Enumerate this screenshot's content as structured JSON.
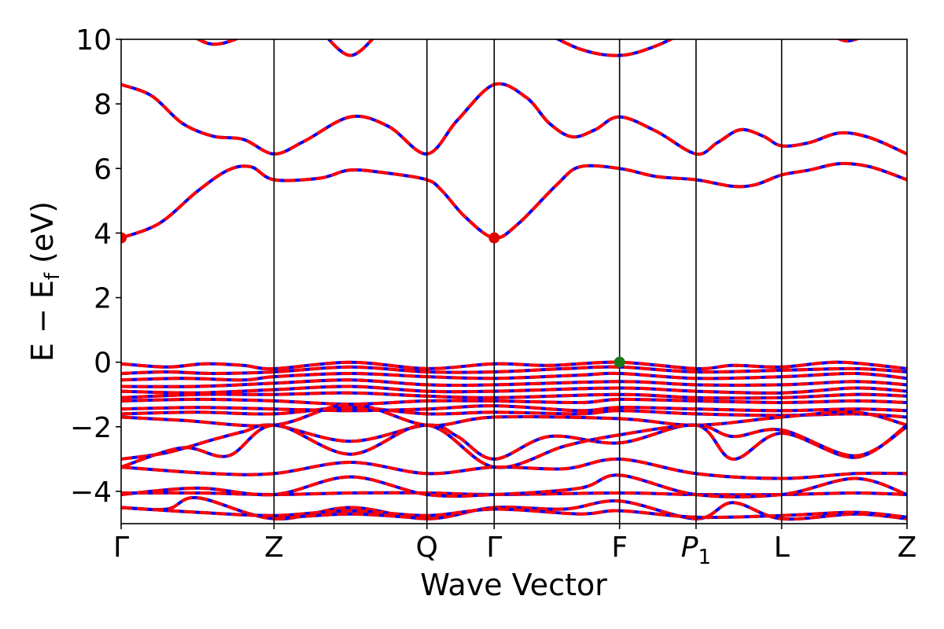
{
  "chart_data": {
    "type": "line",
    "xlabel": "Wave Vector",
    "ylabel": {
      "main": "E − E",
      "sub": "f",
      "unit": " (eV)"
    },
    "ylim": [
      -5,
      10
    ],
    "yticks": [
      -4,
      -2,
      0,
      2,
      4,
      6,
      8,
      10
    ],
    "ytick_labels": [
      "−4",
      "−2",
      "0",
      "2",
      "4",
      "6",
      "8",
      "10"
    ],
    "kpath_positions": [
      0,
      1,
      2,
      2.44,
      3.26,
      3.76,
      4.32,
      5.14
    ],
    "kpath_labels": [
      {
        "text": "Γ",
        "pos": 0
      },
      {
        "text": "Z",
        "pos": 1
      },
      {
        "text": "Q",
        "pos": 2
      },
      {
        "text": "Γ",
        "pos": 2.44
      },
      {
        "text": "F",
        "pos": 3.26
      },
      {
        "text": "P",
        "sub": "1",
        "pos": 3.76
      },
      {
        "text": "L",
        "pos": 4.32
      },
      {
        "text": "Z",
        "pos": 5.14
      }
    ],
    "grid": false,
    "colors": {
      "up": "#ff0000",
      "down": "#0000ff",
      "cbm": "#e00000",
      "vbm": "#1a7a1a"
    },
    "markers": [
      {
        "name": "CBM",
        "x": 0,
        "y": 3.85,
        "color": "#e00000"
      },
      {
        "name": "CBM",
        "x": 2.44,
        "y": 3.85,
        "color": "#e00000"
      },
      {
        "name": "VBM",
        "x": 3.26,
        "y": 0.0,
        "color": "#1a7a1a"
      }
    ],
    "bands": [
      [
        [
          0,
          3.85
        ],
        [
          0.25,
          4.3
        ],
        [
          0.5,
          5.3
        ],
        [
          0.7,
          5.95
        ],
        [
          0.85,
          6.05
        ],
        [
          1,
          5.65
        ],
        [
          1.3,
          5.7
        ],
        [
          1.5,
          5.95
        ],
        [
          1.75,
          5.85
        ],
        [
          2,
          5.65
        ],
        [
          2.1,
          5.3
        ],
        [
          2.25,
          4.5
        ],
        [
          2.44,
          3.85
        ],
        [
          2.6,
          4.3
        ],
        [
          2.85,
          5.5
        ],
        [
          3.0,
          6.05
        ],
        [
          3.26,
          6.0
        ],
        [
          3.5,
          5.75
        ],
        [
          3.76,
          5.65
        ],
        [
          4.0,
          5.45
        ],
        [
          4.15,
          5.5
        ],
        [
          4.32,
          5.8
        ],
        [
          4.5,
          5.95
        ],
        [
          4.7,
          6.15
        ],
        [
          4.9,
          6.05
        ],
        [
          5.14,
          5.65
        ]
      ],
      [
        [
          0,
          8.6
        ],
        [
          0.2,
          8.25
        ],
        [
          0.4,
          7.4
        ],
        [
          0.6,
          7.0
        ],
        [
          0.8,
          6.9
        ],
        [
          1,
          6.45
        ],
        [
          1.2,
          6.85
        ],
        [
          1.5,
          7.6
        ],
        [
          1.75,
          7.3
        ],
        [
          2,
          6.45
        ],
        [
          2.2,
          7.5
        ],
        [
          2.44,
          8.6
        ],
        [
          2.65,
          8.2
        ],
        [
          2.8,
          7.4
        ],
        [
          2.95,
          6.98
        ],
        [
          3.1,
          7.2
        ],
        [
          3.26,
          7.6
        ],
        [
          3.5,
          7.15
        ],
        [
          3.76,
          6.45
        ],
        [
          3.9,
          6.8
        ],
        [
          4.05,
          7.2
        ],
        [
          4.2,
          7.0
        ],
        [
          4.32,
          6.7
        ],
        [
          4.5,
          6.8
        ],
        [
          4.7,
          7.1
        ],
        [
          4.9,
          6.95
        ],
        [
          5.14,
          6.45
        ]
      ],
      [
        [
          0,
          10.6
        ],
        [
          0.4,
          10.2
        ],
        [
          0.6,
          9.85
        ],
        [
          0.8,
          10.1
        ],
        [
          1,
          10.6
        ]
      ],
      [
        [
          1.3,
          10.3
        ],
        [
          1.5,
          9.5
        ],
        [
          1.7,
          10.3
        ]
      ],
      [
        [
          2.7,
          10.4
        ],
        [
          3.0,
          9.7
        ],
        [
          3.26,
          9.5
        ],
        [
          3.5,
          9.8
        ],
        [
          3.76,
          10.4
        ]
      ],
      [
        [
          4.6,
          10.3
        ],
        [
          4.75,
          9.95
        ],
        [
          4.95,
          10.3
        ]
      ],
      [
        [
          0,
          -0.05
        ],
        [
          0.3,
          -0.15
        ],
        [
          0.55,
          -0.05
        ],
        [
          0.8,
          -0.1
        ],
        [
          1,
          -0.2
        ],
        [
          1.5,
          0.0
        ],
        [
          2,
          -0.2
        ],
        [
          2.44,
          -0.05
        ],
        [
          2.8,
          -0.1
        ],
        [
          3.26,
          0.0
        ],
        [
          3.76,
          -0.2
        ],
        [
          4.0,
          -0.1
        ],
        [
          4.32,
          -0.15
        ],
        [
          4.7,
          0.0
        ],
        [
          5.14,
          -0.2
        ]
      ],
      [
        [
          0,
          -0.35
        ],
        [
          0.3,
          -0.3
        ],
        [
          0.6,
          -0.35
        ],
        [
          1,
          -0.3
        ],
        [
          1.5,
          -0.15
        ],
        [
          2,
          -0.3
        ],
        [
          2.44,
          -0.3
        ],
        [
          2.9,
          -0.2
        ],
        [
          3.26,
          -0.15
        ],
        [
          3.76,
          -0.3
        ],
        [
          4.32,
          -0.25
        ],
        [
          4.8,
          -0.2
        ],
        [
          5.14,
          -0.3
        ]
      ],
      [
        [
          0,
          -0.55
        ],
        [
          0.4,
          -0.5
        ],
        [
          0.8,
          -0.55
        ],
        [
          1,
          -0.45
        ],
        [
          1.5,
          -0.35
        ],
        [
          2,
          -0.45
        ],
        [
          2.44,
          -0.5
        ],
        [
          3.0,
          -0.4
        ],
        [
          3.26,
          -0.35
        ],
        [
          3.76,
          -0.5
        ],
        [
          4.32,
          -0.45
        ],
        [
          4.8,
          -0.35
        ],
        [
          5.14,
          -0.5
        ]
      ],
      [
        [
          0,
          -0.75
        ],
        [
          0.5,
          -0.75
        ],
        [
          1,
          -0.65
        ],
        [
          1.5,
          -0.55
        ],
        [
          2,
          -0.7
        ],
        [
          2.44,
          -0.7
        ],
        [
          3.26,
          -0.6
        ],
        [
          3.76,
          -0.7
        ],
        [
          4.32,
          -0.7
        ],
        [
          4.8,
          -0.6
        ],
        [
          5.14,
          -0.7
        ]
      ],
      [
        [
          0,
          -0.9
        ],
        [
          0.5,
          -0.95
        ],
        [
          1,
          -0.85
        ],
        [
          1.5,
          -0.75
        ],
        [
          2,
          -0.9
        ],
        [
          2.44,
          -0.9
        ],
        [
          3.26,
          -0.8
        ],
        [
          3.76,
          -0.9
        ],
        [
          4.32,
          -0.95
        ],
        [
          4.8,
          -0.8
        ],
        [
          5.14,
          -0.9
        ]
      ],
      [
        [
          0,
          -1.1
        ],
        [
          0.5,
          -1.0
        ],
        [
          1,
          -1.0
        ],
        [
          1.5,
          -0.95
        ],
        [
          2,
          -1.05
        ],
        [
          2.44,
          -1.1
        ],
        [
          3.26,
          -1.0
        ],
        [
          3.76,
          -1.1
        ],
        [
          4.32,
          -1.1
        ],
        [
          4.8,
          -1.0
        ],
        [
          5.14,
          -1.05
        ]
      ],
      [
        [
          0,
          -1.2
        ],
        [
          0.5,
          -1.15
        ],
        [
          1,
          -1.2
        ],
        [
          1.5,
          -1.3
        ],
        [
          2,
          -1.2
        ],
        [
          2.44,
          -1.2
        ],
        [
          3.0,
          -1.25
        ],
        [
          3.26,
          -1.15
        ],
        [
          3.76,
          -1.2
        ],
        [
          4.32,
          -1.25
        ],
        [
          4.8,
          -1.2
        ],
        [
          5.14,
          -1.25
        ]
      ],
      [
        [
          0,
          -1.45
        ],
        [
          0.5,
          -1.4
        ],
        [
          1,
          -1.45
        ],
        [
          1.5,
          -1.5
        ],
        [
          2,
          -1.45
        ],
        [
          2.44,
          -1.35
        ],
        [
          3.0,
          -1.5
        ],
        [
          3.26,
          -1.4
        ],
        [
          3.76,
          -1.45
        ],
        [
          4.32,
          -1.5
        ],
        [
          4.8,
          -1.45
        ],
        [
          5.14,
          -1.5
        ]
      ],
      [
        [
          0,
          -1.6
        ],
        [
          0.5,
          -1.55
        ],
        [
          1,
          -1.6
        ],
        [
          1.5,
          -1.4
        ],
        [
          2,
          -1.6
        ],
        [
          2.44,
          -1.55
        ],
        [
          3.0,
          -1.6
        ],
        [
          3.26,
          -1.5
        ],
        [
          3.76,
          -1.6
        ],
        [
          4.32,
          -1.65
        ],
        [
          4.8,
          -1.6
        ],
        [
          5.14,
          -1.7
        ]
      ],
      [
        [
          0,
          -1.7
        ],
        [
          0.4,
          -1.8
        ],
        [
          1,
          -1.95
        ],
        [
          1.5,
          -1.3
        ],
        [
          2,
          -1.95
        ],
        [
          2.44,
          -1.7
        ],
        [
          3.26,
          -1.75
        ],
        [
          3.76,
          -1.95
        ],
        [
          4.32,
          -1.7
        ],
        [
          4.8,
          -1.55
        ],
        [
          5.14,
          -1.95
        ]
      ],
      [
        [
          0,
          -3.0
        ],
        [
          0.3,
          -2.8
        ],
        [
          0.6,
          -2.4
        ],
        [
          0.8,
          -2.15
        ],
        [
          1,
          -1.95
        ],
        [
          1.5,
          -2.45
        ],
        [
          2,
          -1.95
        ],
        [
          2.2,
          -2.3
        ],
        [
          2.44,
          -3.0
        ],
        [
          2.8,
          -2.3
        ],
        [
          3.26,
          -2.5
        ],
        [
          3.76,
          -1.95
        ],
        [
          4.0,
          -3.0
        ],
        [
          4.32,
          -2.2
        ],
        [
          4.8,
          -2.95
        ],
        [
          5.14,
          -1.95
        ]
      ],
      [
        [
          0,
          -3.25
        ],
        [
          0.4,
          -2.65
        ],
        [
          0.7,
          -2.9
        ],
        [
          1,
          -1.95
        ],
        [
          1.5,
          -2.85
        ],
        [
          2,
          -1.95
        ],
        [
          2.44,
          -3.25
        ],
        [
          2.9,
          -2.6
        ],
        [
          3.26,
          -2.25
        ],
        [
          3.76,
          -1.95
        ],
        [
          4.0,
          -2.3
        ],
        [
          4.32,
          -2.1
        ],
        [
          4.8,
          -2.9
        ],
        [
          5.14,
          -2.0
        ]
      ],
      [
        [
          0,
          -3.25
        ],
        [
          0.6,
          -3.45
        ],
        [
          1,
          -3.45
        ],
        [
          1.5,
          -3.1
        ],
        [
          2,
          -3.45
        ],
        [
          2.44,
          -3.25
        ],
        [
          2.9,
          -3.3
        ],
        [
          3.26,
          -3.0
        ],
        [
          3.76,
          -3.45
        ],
        [
          4.32,
          -3.6
        ],
        [
          4.8,
          -3.45
        ],
        [
          5.14,
          -3.45
        ]
      ],
      [
        [
          0,
          -4.05
        ],
        [
          0.5,
          -4.05
        ],
        [
          1,
          -4.1
        ],
        [
          1.5,
          -4.05
        ],
        [
          2,
          -4.05
        ],
        [
          2.44,
          -4.1
        ],
        [
          3.26,
          -4.05
        ],
        [
          3.76,
          -4.1
        ],
        [
          4.32,
          -4.1
        ],
        [
          4.8,
          -4.05
        ],
        [
          5.14,
          -4.1
        ]
      ],
      [
        [
          0,
          -4.1
        ],
        [
          0.5,
          -3.9
        ],
        [
          1,
          -4.1
        ],
        [
          1.5,
          -3.55
        ],
        [
          2,
          -4.1
        ],
        [
          2.44,
          -4.1
        ],
        [
          3.0,
          -3.9
        ],
        [
          3.26,
          -3.5
        ],
        [
          3.76,
          -4.1
        ],
        [
          4.32,
          -4.1
        ],
        [
          4.8,
          -3.6
        ],
        [
          5.14,
          -4.1
        ]
      ],
      [
        [
          0,
          -4.5
        ],
        [
          0.3,
          -4.55
        ],
        [
          0.5,
          -4.2
        ],
        [
          1,
          -4.85
        ],
        [
          1.5,
          -4.5
        ],
        [
          2,
          -4.85
        ],
        [
          2.44,
          -4.5
        ],
        [
          2.9,
          -4.55
        ],
        [
          3.26,
          -4.3
        ],
        [
          3.76,
          -4.85
        ],
        [
          4.0,
          -4.35
        ],
        [
          4.32,
          -4.85
        ],
        [
          4.8,
          -4.7
        ],
        [
          5.14,
          -4.85
        ]
      ],
      [
        [
          0,
          -4.5
        ],
        [
          0.5,
          -4.65
        ],
        [
          1,
          -4.75
        ],
        [
          1.5,
          -4.6
        ],
        [
          2,
          -4.75
        ],
        [
          2.44,
          -4.55
        ],
        [
          3.0,
          -4.7
        ],
        [
          3.26,
          -4.6
        ],
        [
          3.76,
          -4.8
        ],
        [
          4.32,
          -4.75
        ],
        [
          4.8,
          -4.65
        ],
        [
          5.14,
          -4.8
        ]
      ],
      [
        [
          1,
          -4.85
        ],
        [
          1.5,
          -4.7
        ],
        [
          2,
          -4.85
        ]
      ]
    ]
  }
}
